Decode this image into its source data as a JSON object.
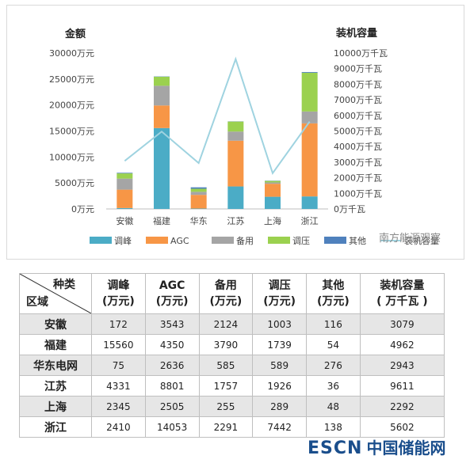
{
  "chart_data": {
    "type": "bar",
    "stacked": true,
    "categories": [
      "安徽",
      "福建",
      "华东",
      "江苏",
      "上海",
      "浙江"
    ],
    "series": [
      {
        "name": "调峰",
        "values": [
          172,
          15560,
          75,
          4331,
          2345,
          2410
        ],
        "color": "#4bacc6"
      },
      {
        "name": "AGC",
        "values": [
          3543,
          4350,
          2636,
          8801,
          2505,
          14053
        ],
        "color": "#f79646"
      },
      {
        "name": "备用",
        "values": [
          2124,
          3790,
          585,
          1757,
          255,
          2291
        ],
        "color": "#a5a5a5"
      },
      {
        "name": "调压",
        "values": [
          1003,
          1739,
          589,
          1926,
          289,
          7442
        ],
        "color": "#9bd14f"
      },
      {
        "name": "其他",
        "values": [
          116,
          54,
          276,
          36,
          48,
          138
        ],
        "color": "#4f81bd"
      }
    ],
    "line_series": {
      "name": "装机容量",
      "values": [
        3079,
        4962,
        2943,
        9611,
        2292,
        5602
      ],
      "color": "#9fd3e0"
    },
    "ylabel_left": "金额",
    "ylabel_right": "装机容量",
    "ylim_left": [
      0,
      30000
    ],
    "ylim_right": [
      0,
      10000
    ],
    "yticks_left": [
      "0万元",
      "5000万元",
      "10000万元",
      "15000万元",
      "20000万元",
      "25000万元",
      "30000万元"
    ],
    "yticks_right": [
      "0万千瓦",
      "1000万千瓦",
      "2000万千瓦",
      "3000万千瓦",
      "4000万千瓦",
      "5000万千瓦",
      "6000万千瓦",
      "7000万千瓦",
      "8000万千瓦",
      "9000万千瓦",
      "10000万千瓦"
    ],
    "grid": false,
    "legend_position": "bottom"
  },
  "watermark_top": "南方能源观察",
  "watermark_bottom_logo": "ESCN",
  "watermark_bottom_name": "中国储能网",
  "table": {
    "corner_top": "种类",
    "corner_bottom": "区域",
    "headers": [
      [
        "调峰",
        "(万元)"
      ],
      [
        "AGC",
        "(万元)"
      ],
      [
        "备用",
        "(万元)"
      ],
      [
        "调压",
        "(万元)"
      ],
      [
        "其他",
        "(万元)"
      ],
      [
        "装机容量",
        "( 万千瓦 )"
      ]
    ],
    "rows": [
      {
        "region": "安徽",
        "cells": [
          "172",
          "3543",
          "2124",
          "1003",
          "116",
          "3079"
        ]
      },
      {
        "region": "福建",
        "cells": [
          "15560",
          "4350",
          "3790",
          "1739",
          "54",
          "4962"
        ]
      },
      {
        "region": "华东电网",
        "cells": [
          "75",
          "2636",
          "585",
          "589",
          "276",
          "2943"
        ]
      },
      {
        "region": "江苏",
        "cells": [
          "4331",
          "8801",
          "1757",
          "1926",
          "36",
          "9611"
        ]
      },
      {
        "region": "上海",
        "cells": [
          "2345",
          "2505",
          "255",
          "289",
          "48",
          "2292"
        ]
      },
      {
        "region": "浙江",
        "cells": [
          "2410",
          "14053",
          "2291",
          "7442",
          "138",
          "5602"
        ]
      }
    ]
  }
}
